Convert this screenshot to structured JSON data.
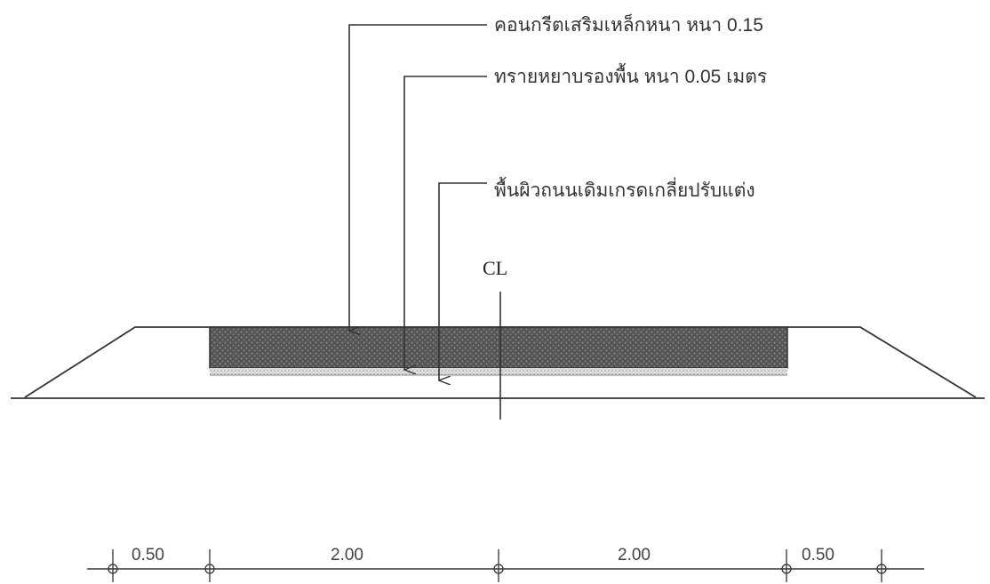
{
  "callouts": {
    "concrete": "คอนกรีตเสริมเหล็กหนา  หนา 0.15",
    "sand": "ทรายหยาบรองพื้น  หนา 0.05  เมตร",
    "subgrade": "พื้นผิวถนนเดิมเกรดเกลี่ยปรับแต่ง"
  },
  "centerline": {
    "label": "CL"
  },
  "dimensions": [
    "0.50",
    "2.00",
    "2.00",
    "0.50"
  ],
  "colors": {
    "line": "#333333",
    "concrete_fill": "#5a5a5a",
    "sand_fill": "#cfcfcf"
  }
}
